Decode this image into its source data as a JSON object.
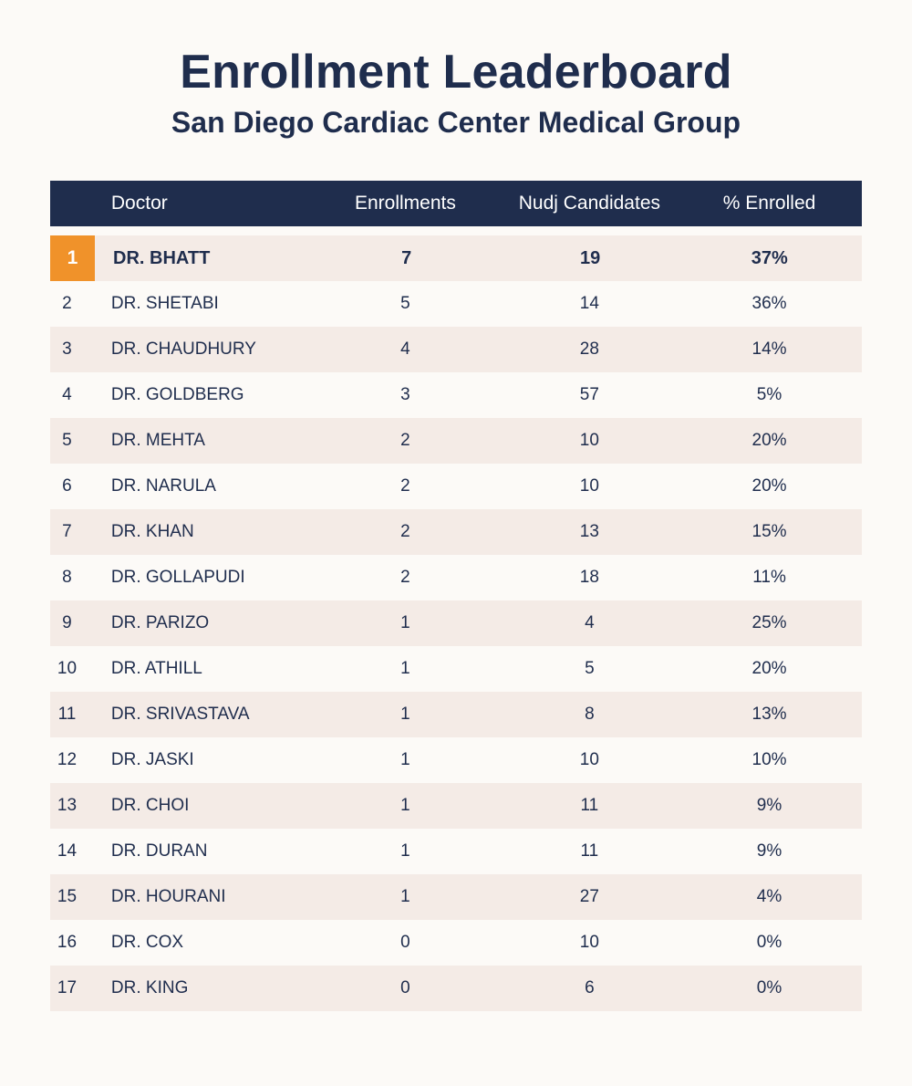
{
  "title": "Enrollment Leaderboard",
  "subtitle": "San Diego Cardiac Center Medical Group",
  "columns": {
    "rank": "",
    "doctor": "Doctor",
    "enrollments": "Enrollments",
    "candidates": "Nudj Candidates",
    "pct": "% Enrolled"
  },
  "colors": {
    "header_bg": "#1f2d4d",
    "accent": "#f0922a",
    "stripe": "#f4ebe6",
    "background": "#fcfaf7"
  },
  "rows": [
    {
      "rank": "1",
      "doctor": "DR. BHATT",
      "enrollments": "7",
      "candidates": "19",
      "pct": "37%"
    },
    {
      "rank": "2",
      "doctor": "DR. SHETABI",
      "enrollments": "5",
      "candidates": "14",
      "pct": "36%"
    },
    {
      "rank": "3",
      "doctor": "DR. CHAUDHURY",
      "enrollments": "4",
      "candidates": "28",
      "pct": "14%"
    },
    {
      "rank": "4",
      "doctor": "DR. GOLDBERG",
      "enrollments": "3",
      "candidates": "57",
      "pct": "5%"
    },
    {
      "rank": "5",
      "doctor": "DR. MEHTA",
      "enrollments": "2",
      "candidates": "10",
      "pct": "20%"
    },
    {
      "rank": "6",
      "doctor": "DR. NARULA",
      "enrollments": "2",
      "candidates": "10",
      "pct": "20%"
    },
    {
      "rank": "7",
      "doctor": "DR. KHAN",
      "enrollments": "2",
      "candidates": "13",
      "pct": "15%"
    },
    {
      "rank": "8",
      "doctor": "DR. GOLLAPUDI",
      "enrollments": "2",
      "candidates": "18",
      "pct": "11%"
    },
    {
      "rank": "9",
      "doctor": "DR. PARIZO",
      "enrollments": "1",
      "candidates": "4",
      "pct": "25%"
    },
    {
      "rank": "10",
      "doctor": "DR. ATHILL",
      "enrollments": "1",
      "candidates": "5",
      "pct": "20%"
    },
    {
      "rank": "11",
      "doctor": "DR. SRIVASTAVA",
      "enrollments": "1",
      "candidates": "8",
      "pct": "13%"
    },
    {
      "rank": "12",
      "doctor": "DR. JASKI",
      "enrollments": "1",
      "candidates": "10",
      "pct": "10%"
    },
    {
      "rank": "13",
      "doctor": "DR. CHOI",
      "enrollments": "1",
      "candidates": "11",
      "pct": "9%"
    },
    {
      "rank": "14",
      "doctor": "DR. DURAN",
      "enrollments": "1",
      "candidates": "11",
      "pct": "9%"
    },
    {
      "rank": "15",
      "doctor": "DR. HOURANI",
      "enrollments": "1",
      "candidates": "27",
      "pct": "4%"
    },
    {
      "rank": "16",
      "doctor": "DR. COX",
      "enrollments": "0",
      "candidates": "10",
      "pct": "0%"
    },
    {
      "rank": "17",
      "doctor": "DR. KING",
      "enrollments": "0",
      "candidates": "6",
      "pct": "0%"
    }
  ]
}
